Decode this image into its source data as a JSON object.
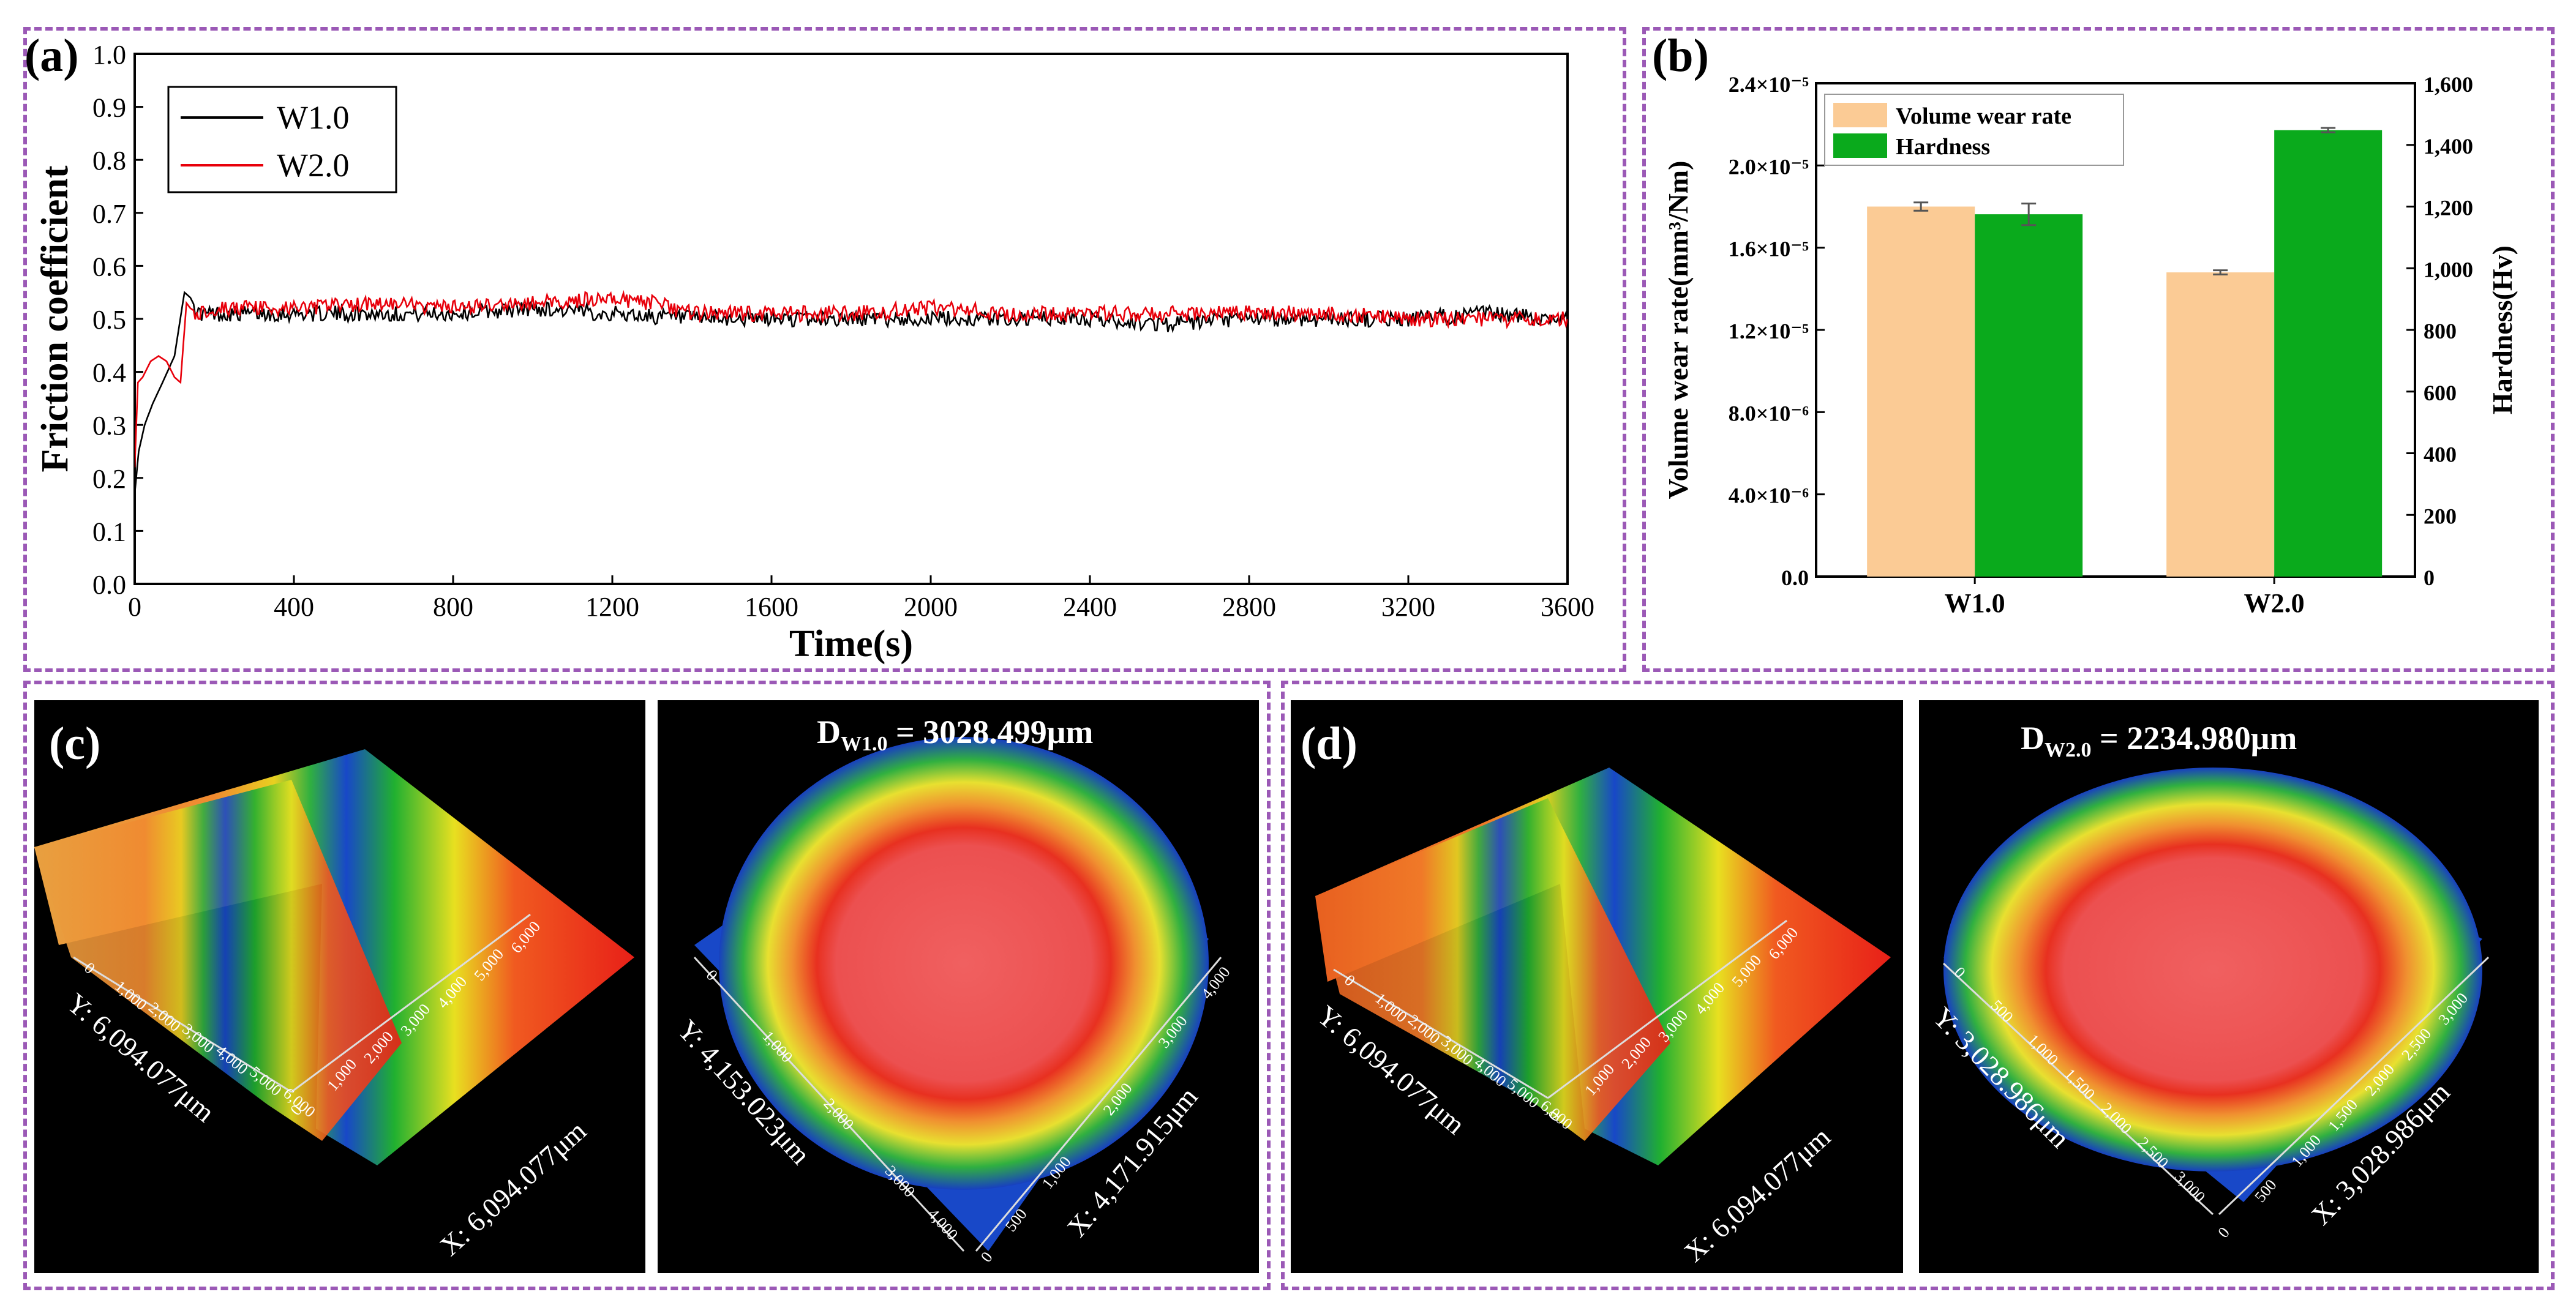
{
  "panel_a": {
    "label": "(a)",
    "chart_data": {
      "type": "line",
      "title": "",
      "xlabel": "Time(s)",
      "ylabel": "Friction coefficient",
      "xlim": [
        0,
        3600
      ],
      "ylim": [
        0.0,
        1.0
      ],
      "x_ticks": [
        "0",
        "400",
        "800",
        "1200",
        "1600",
        "2000",
        "2400",
        "2800",
        "3200",
        "3600"
      ],
      "y_ticks": [
        "0.0",
        "0.1",
        "0.2",
        "0.3",
        "0.4",
        "0.5",
        "0.6",
        "0.7",
        "0.8",
        "0.9",
        "1.0"
      ],
      "legend": "top-left",
      "series": [
        {
          "name": "W1.0",
          "color": "#000000",
          "x": [
            0,
            10,
            25,
            45,
            70,
            100,
            125,
            140,
            160,
            200,
            300,
            400,
            600,
            800,
            1000,
            1200,
            1400,
            1600,
            1800,
            2000,
            2200,
            2400,
            2600,
            2800,
            3000,
            3200,
            3400,
            3600
          ],
          "y": [
            0.17,
            0.25,
            0.3,
            0.34,
            0.38,
            0.43,
            0.55,
            0.54,
            0.51,
            0.51,
            0.51,
            0.51,
            0.51,
            0.51,
            0.52,
            0.51,
            0.5,
            0.5,
            0.5,
            0.5,
            0.5,
            0.5,
            0.49,
            0.5,
            0.5,
            0.5,
            0.51,
            0.5
          ]
        },
        {
          "name": "W2.0",
          "color": "#e8000b",
          "x": [
            0,
            8,
            20,
            40,
            60,
            80,
            100,
            115,
            130,
            140,
            160,
            200,
            300,
            400,
            600,
            800,
            1000,
            1200,
            1300,
            1400,
            1600,
            1800,
            2000,
            2200,
            2400,
            2600,
            2800,
            3000,
            3200,
            3400,
            3600
          ],
          "y": [
            0.22,
            0.38,
            0.39,
            0.42,
            0.43,
            0.42,
            0.39,
            0.38,
            0.53,
            0.52,
            0.51,
            0.52,
            0.52,
            0.52,
            0.53,
            0.52,
            0.53,
            0.54,
            0.53,
            0.51,
            0.51,
            0.51,
            0.52,
            0.51,
            0.51,
            0.51,
            0.51,
            0.51,
            0.5,
            0.5,
            0.5
          ]
        }
      ]
    }
  },
  "panel_b": {
    "label": "(b)",
    "chart_data": {
      "type": "bar",
      "categories": [
        "W1.0",
        "W2.0"
      ],
      "ylabel_left": "Volume wear rate(mm³/Nm)",
      "ylabel_right": "Hardness(Hv)",
      "ylim_left": [
        0,
        2.4e-05
      ],
      "ylim_right": [
        0,
        1600
      ],
      "y_ticks_left": [
        "0.0",
        "4.0×10⁻⁶",
        "8.0×10⁻⁶",
        "1.2×10⁻⁵",
        "1.6×10⁻⁵",
        "2.0×10⁻⁵",
        "2.4×10⁻⁵"
      ],
      "y_ticks_right": [
        "0",
        "200",
        "400",
        "600",
        "800",
        "1,000",
        "1,200",
        "1,400",
        "1,600"
      ],
      "legend": "top-left",
      "series": [
        {
          "name": "Volume wear rate",
          "axis": "left",
          "color": "#fbcb95",
          "values": [
            1.8e-05,
            1.48e-05
          ],
          "errors": [
            2e-07,
            1e-07
          ]
        },
        {
          "name": "Hardness",
          "axis": "right",
          "color": "#0aaa1c",
          "values": [
            1175,
            1448
          ],
          "errors": [
            35,
            7
          ]
        }
      ]
    }
  },
  "panel_c": {
    "label": "(c)",
    "left_image": {
      "y_axis_label": "Y: 6,094.077μm",
      "x_axis_label": "X: 6,094.077μm",
      "y_ticks": [
        "0",
        "1,000",
        "2,000",
        "3,000",
        "4,000",
        "5,000",
        "6,000"
      ],
      "x_ticks": [
        "0",
        "1,000",
        "2,000",
        "3,000",
        "4,000",
        "5,000",
        "6,000"
      ]
    },
    "right_image": {
      "diameter_prefix": "D",
      "diameter_subscript": "W1.0",
      "diameter_value": " = 3028.499μm",
      "y_axis_label": "Y: 4,153.023μm",
      "x_axis_label": "X: 4,171.915μm",
      "y_ticks": [
        "0",
        "1,000",
        "2,000",
        "3,000",
        "4,000"
      ],
      "x_ticks": [
        "0",
        "500",
        "1,000",
        "2,000",
        "3,000",
        "4,000"
      ]
    }
  },
  "panel_d": {
    "label": "(d)",
    "left_image": {
      "y_axis_label": "Y: 6,094.077μm",
      "x_axis_label": "X: 6,094.077μm",
      "y_ticks": [
        "0",
        "1,000",
        "2,000",
        "3,000",
        "4,000",
        "5,000",
        "6,000"
      ],
      "x_ticks": [
        "0",
        "1,000",
        "2,000",
        "3,000",
        "4,000",
        "5,000",
        "6,000"
      ]
    },
    "right_image": {
      "diameter_prefix": "D",
      "diameter_subscript": "W2.0",
      "diameter_value": " = 2234.980μm",
      "y_axis_label": "Y: 3,028.986μm",
      "x_axis_label": "X: 3,028.986μm",
      "y_ticks": [
        "0",
        "500",
        "1,000",
        "1,500",
        "2,000",
        "2,500",
        "3,000"
      ],
      "x_ticks": [
        "0",
        "500",
        "1,000",
        "1,500",
        "2,000",
        "2,500",
        "3,000"
      ]
    }
  }
}
